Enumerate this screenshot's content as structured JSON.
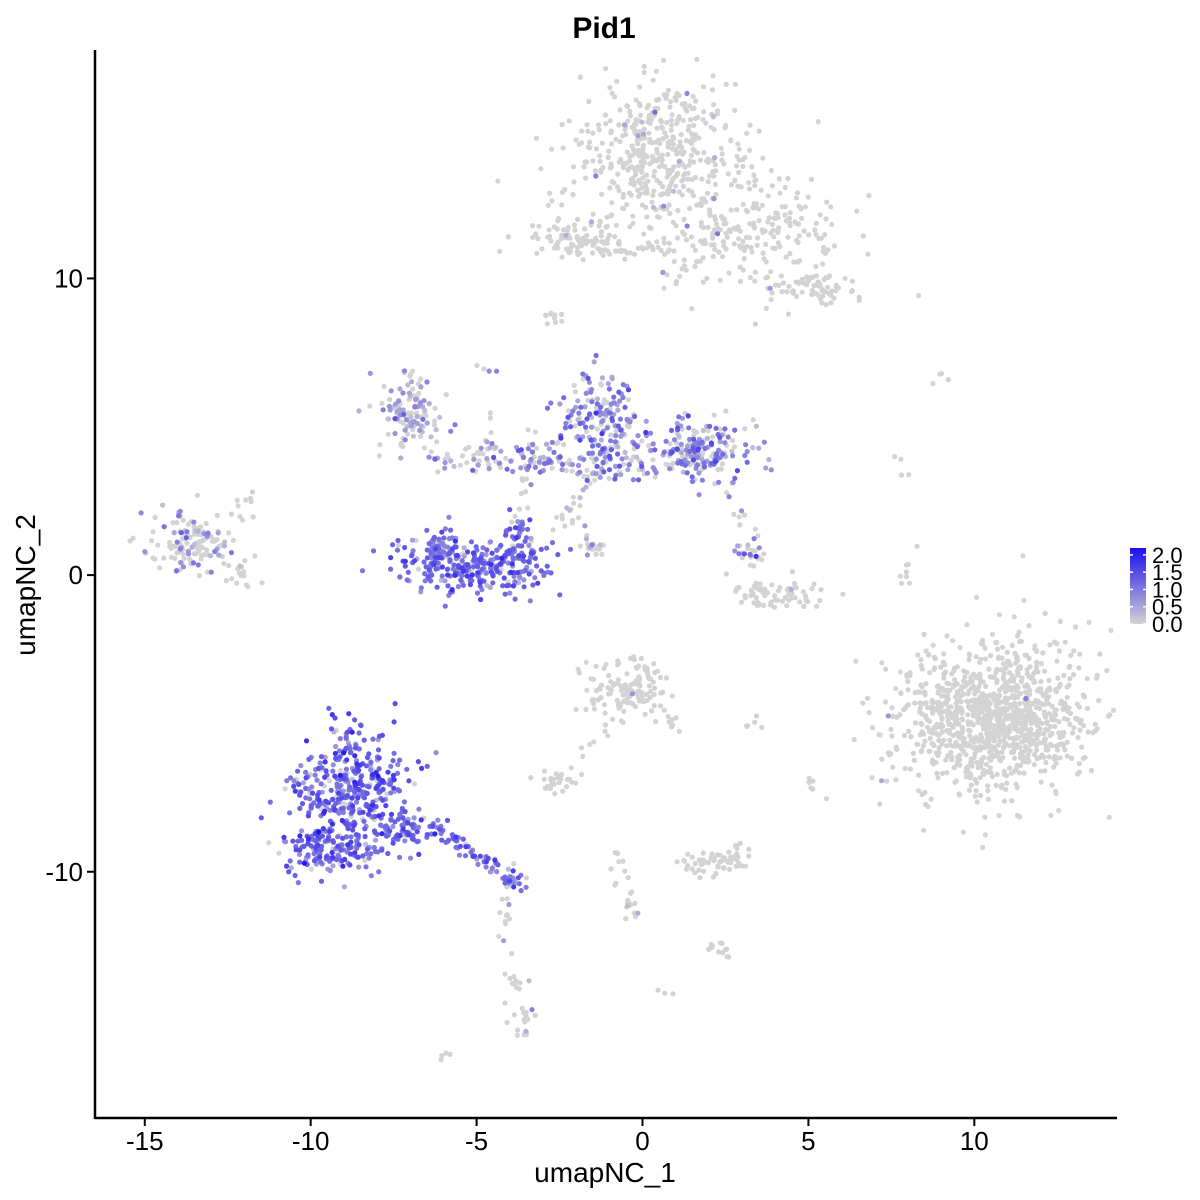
{
  "chart_data": {
    "type": "scatter",
    "title": "Pid1",
    "xlabel": "umapNC_1",
    "ylabel": "umapNC_2",
    "xlim": [
      -16.5,
      14.3
    ],
    "ylim": [
      -18.3,
      17.7
    ],
    "x_ticks": [
      -15,
      -10,
      -5,
      0,
      5,
      10
    ],
    "y_ticks": [
      -10,
      0,
      10
    ],
    "x_tick_labels": [
      "-15",
      "-10",
      "-5",
      "0",
      "5",
      "10"
    ],
    "y_tick_labels": [
      "-10",
      "0",
      "10"
    ],
    "grid": false,
    "legend_position": "right",
    "color_scale": {
      "low_color": "#d3d3d3",
      "high_color": "#1d0ff0",
      "min": 0.0,
      "max": 2.2,
      "ticks": [
        0.0,
        0.5,
        1.0,
        1.5,
        2.0
      ],
      "tick_labels": [
        "0.0",
        "0.5",
        "1.0",
        "1.5",
        "2.0"
      ]
    },
    "clusters": [
      {
        "cx": 0.5,
        "cy": 14.0,
        "sx": 1.4,
        "sy": 1.3,
        "n": 450,
        "expr_frac": 0.02,
        "expr_mean": 0.5
      },
      {
        "cx": 3.2,
        "cy": 11.5,
        "sx": 1.5,
        "sy": 1.0,
        "n": 220,
        "expr_frac": 0.02,
        "expr_mean": 0.5
      },
      {
        "cx": 5.3,
        "cy": 9.7,
        "sx": 0.6,
        "sy": 0.3,
        "n": 60,
        "expr_frac": 0.0,
        "expr_mean": 0.0
      },
      {
        "cx": -2.0,
        "cy": 11.3,
        "sx": 0.7,
        "sy": 0.35,
        "n": 80,
        "expr_frac": 0.05,
        "expr_mean": 0.6
      },
      {
        "cx": -0.5,
        "cy": 11.0,
        "sx": 1.0,
        "sy": 0.15,
        "n": 40,
        "expr_frac": 0.03,
        "expr_mean": 0.5
      },
      {
        "cx": -2.7,
        "cy": 8.8,
        "sx": 0.2,
        "sy": 0.15,
        "n": 10,
        "expr_frac": 0.0,
        "expr_mean": 0.0
      },
      {
        "cx": -6.9,
        "cy": 5.5,
        "sx": 0.6,
        "sy": 0.6,
        "n": 110,
        "expr_frac": 0.55,
        "expr_mean": 0.6
      },
      {
        "cx": -1.3,
        "cy": 5.2,
        "sx": 0.6,
        "sy": 0.8,
        "n": 150,
        "expr_frac": 0.7,
        "expr_mean": 0.9
      },
      {
        "cx": 1.8,
        "cy": 4.3,
        "sx": 0.7,
        "sy": 0.55,
        "n": 140,
        "expr_frac": 0.7,
        "expr_mean": 0.9
      },
      {
        "cx": -3.5,
        "cy": 3.9,
        "sx": 1.3,
        "sy": 0.3,
        "n": 90,
        "expr_frac": 0.5,
        "expr_mean": 0.8
      },
      {
        "cx": 0.0,
        "cy": 3.9,
        "sx": 1.5,
        "sy": 0.45,
        "n": 110,
        "expr_frac": 0.55,
        "expr_mean": 0.9
      },
      {
        "cx": -5.1,
        "cy": 0.3,
        "sx": 1.2,
        "sy": 0.45,
        "n": 280,
        "expr_frac": 0.9,
        "expr_mean": 1.1
      },
      {
        "cx": -3.7,
        "cy": 0.9,
        "sx": 0.25,
        "sy": 0.5,
        "n": 60,
        "expr_frac": 0.9,
        "expr_mean": 1.1
      },
      {
        "cx": -6.2,
        "cy": 0.9,
        "sx": 0.25,
        "sy": 0.35,
        "n": 40,
        "expr_frac": 0.9,
        "expr_mean": 1.1
      },
      {
        "cx": -13.6,
        "cy": 1.1,
        "sx": 0.75,
        "sy": 0.5,
        "n": 140,
        "expr_frac": 0.3,
        "expr_mean": 0.6
      },
      {
        "cx": -12.2,
        "cy": 0.0,
        "sx": 0.25,
        "sy": 0.2,
        "n": 12,
        "expr_frac": 0.0,
        "expr_mean": 0.0
      },
      {
        "cx": 4.0,
        "cy": -0.7,
        "sx": 0.8,
        "sy": 0.25,
        "n": 70,
        "expr_frac": 0.05,
        "expr_mean": 0.5
      },
      {
        "cx": 3.2,
        "cy": 0.8,
        "sx": 0.25,
        "sy": 0.35,
        "n": 25,
        "expr_frac": 0.5,
        "expr_mean": 0.7
      },
      {
        "cx": 10.5,
        "cy": -4.8,
        "sx": 1.5,
        "sy": 1.25,
        "n": 1100,
        "expr_frac": 0.006,
        "expr_mean": 0.7
      },
      {
        "cx": -0.5,
        "cy": -3.8,
        "sx": 0.6,
        "sy": 0.5,
        "n": 120,
        "expr_frac": 0.01,
        "expr_mean": 0.5
      },
      {
        "cx": -8.7,
        "cy": -7.2,
        "sx": 0.9,
        "sy": 1.0,
        "n": 380,
        "expr_frac": 0.92,
        "expr_mean": 1.2
      },
      {
        "cx": -9.5,
        "cy": -9.3,
        "sx": 0.8,
        "sy": 0.45,
        "n": 150,
        "expr_frac": 0.92,
        "expr_mean": 1.15
      },
      {
        "cx": -7.2,
        "cy": -8.7,
        "sx": 0.45,
        "sy": 0.35,
        "n": 60,
        "expr_frac": 0.9,
        "expr_mean": 1.1
      },
      {
        "cx": -3.9,
        "cy": -10.3,
        "sx": 0.25,
        "sy": 0.2,
        "n": 25,
        "expr_frac": 0.85,
        "expr_mean": 1.1
      },
      {
        "cx": 2.3,
        "cy": -9.7,
        "sx": 0.6,
        "sy": 0.2,
        "n": 60,
        "expr_frac": 0.0,
        "expr_mean": 0.0
      },
      {
        "cx": -2.6,
        "cy": -6.9,
        "sx": 0.35,
        "sy": 0.2,
        "n": 30,
        "expr_frac": 0.0,
        "expr_mean": 0.0
      },
      {
        "cx": 2.3,
        "cy": -12.6,
        "sx": 0.2,
        "sy": 0.15,
        "n": 14,
        "expr_frac": 0.0,
        "expr_mean": 0.0
      },
      {
        "cx": -3.6,
        "cy": -15.0,
        "sx": 0.2,
        "sy": 0.3,
        "n": 18,
        "expr_frac": 0.2,
        "expr_mean": 0.6
      }
    ],
    "trails": [
      {
        "from": [
          -4.8,
          3.6
        ],
        "to": [
          -4.6,
          7.4
        ],
        "n": 16,
        "expr_frac": 0.6,
        "expr_mean": 0.7
      },
      {
        "from": [
          -3.8,
          1.5
        ],
        "to": [
          -3.2,
          5.0
        ],
        "n": 14,
        "expr_frac": 0.4,
        "expr_mean": 0.6
      },
      {
        "from": [
          -2.5,
          1.5
        ],
        "to": [
          -1.5,
          3.5
        ],
        "n": 18,
        "expr_frac": 0.3,
        "expr_mean": 0.5
      },
      {
        "from": [
          -2.2,
          2.2
        ],
        "to": [
          -1.3,
          0.8
        ],
        "n": 12,
        "expr_frac": 0.3,
        "expr_mean": 0.6
      },
      {
        "from": [
          -1.8,
          1.2
        ],
        "to": [
          -1.1,
          0.6
        ],
        "n": 10,
        "expr_frac": 0.0,
        "expr_mean": 0.0
      },
      {
        "from": [
          2.5,
          3.8
        ],
        "to": [
          3.1,
          1.5
        ],
        "n": 10,
        "expr_frac": 0.5,
        "expr_mean": 0.8
      },
      {
        "from": [
          -7.5,
          4.5
        ],
        "to": [
          -5.5,
          3.8
        ],
        "n": 12,
        "expr_frac": 0.3,
        "expr_mean": 0.6
      },
      {
        "from": [
          -11.8,
          2.8
        ],
        "to": [
          -12.6,
          1.8
        ],
        "n": 8,
        "expr_frac": 0.0,
        "expr_mean": 0.0
      },
      {
        "from": [
          -6.5,
          -8.4
        ],
        "to": [
          -4.0,
          -10.2
        ],
        "n": 60,
        "expr_frac": 0.85,
        "expr_mean": 1.1
      },
      {
        "from": [
          -4.2,
          -10.8
        ],
        "to": [
          -3.8,
          -14.0
        ],
        "n": 22,
        "expr_frac": 0.15,
        "expr_mean": 0.6
      },
      {
        "from": [
          -1.0,
          -5.0
        ],
        "to": [
          -2.0,
          -6.0
        ],
        "n": 8,
        "expr_frac": 0.0,
        "expr_mean": 0.0
      },
      {
        "from": [
          0.2,
          -4.5
        ],
        "to": [
          1.2,
          -5.2
        ],
        "n": 10,
        "expr_frac": 0.0,
        "expr_mean": 0.0
      },
      {
        "from": [
          -0.8,
          -9.3
        ],
        "to": [
          -0.2,
          -11.8
        ],
        "n": 22,
        "expr_frac": 0.05,
        "expr_mean": 0.6
      },
      {
        "from": [
          7.9,
          -0.2
        ],
        "to": [
          8.2,
          1.0
        ],
        "n": 8,
        "expr_frac": 0.0,
        "expr_mean": 0.0
      },
      {
        "from": [
          7.5,
          4.0
        ],
        "to": [
          8.0,
          3.3
        ],
        "n": 4,
        "expr_frac": 0.0,
        "expr_mean": 0.0
      },
      {
        "from": [
          3.2,
          -5.0
        ],
        "to": [
          3.8,
          -5.0
        ],
        "n": 6,
        "expr_frac": 0.0,
        "expr_mean": 0.0
      },
      {
        "from": [
          5.0,
          -6.8
        ],
        "to": [
          5.3,
          -7.6
        ],
        "n": 6,
        "expr_frac": 0.0,
        "expr_mean": 0.0
      },
      {
        "from": [
          2.8,
          -9.0
        ],
        "to": [
          3.2,
          -9.3
        ],
        "n": 5,
        "expr_frac": 0.0,
        "expr_mean": 0.0
      },
      {
        "from": [
          -6.2,
          -16.3
        ],
        "to": [
          -5.9,
          -16.1
        ],
        "n": 4,
        "expr_frac": 0.0,
        "expr_mean": 0.0
      },
      {
        "from": [
          0.6,
          -14.0
        ],
        "to": [
          0.7,
          -14.1
        ],
        "n": 3,
        "expr_frac": 0.0,
        "expr_mean": 0.0
      },
      {
        "from": [
          8.8,
          6.7
        ],
        "to": [
          9.3,
          6.7
        ],
        "n": 4,
        "expr_frac": 0.0,
        "expr_mean": 0.0
      },
      {
        "from": [
          5.5,
          -2.3
        ],
        "to": [
          5.7,
          -2.5
        ],
        "n": 0,
        "expr_frac": 0.0,
        "expr_mean": 0.0
      }
    ]
  }
}
